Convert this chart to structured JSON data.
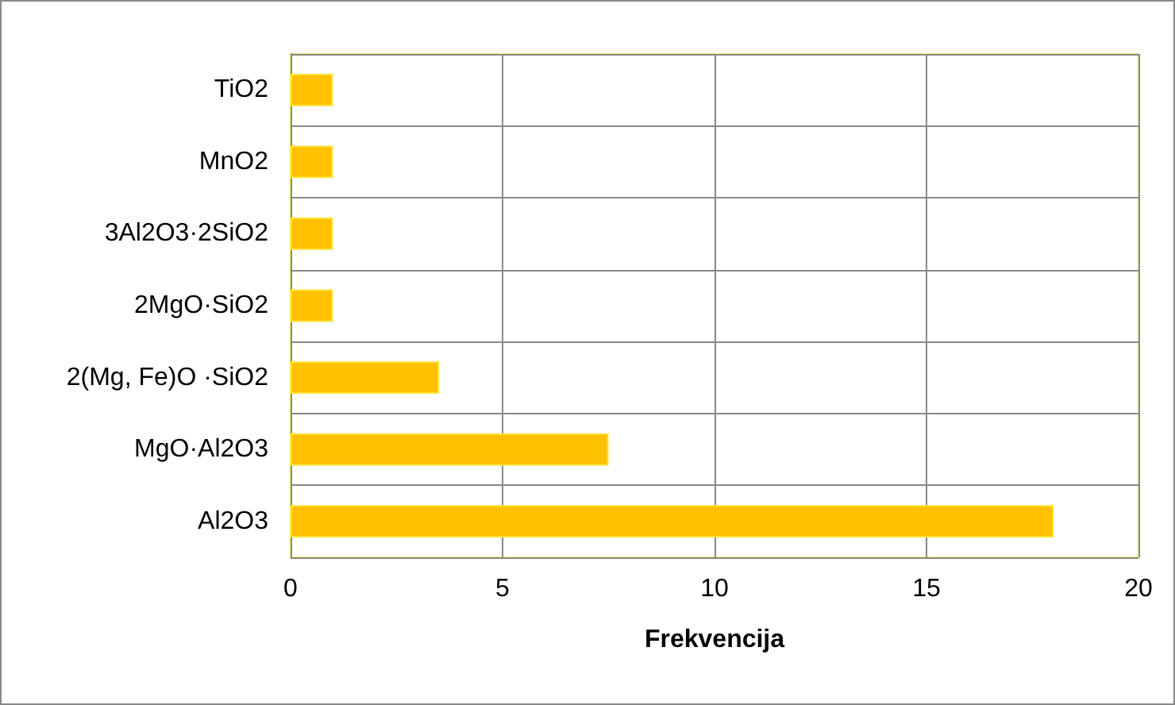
{
  "chart_data": {
    "type": "bar",
    "orientation": "horizontal",
    "xlabel": "Frekvencija",
    "categories": [
      "TiO2",
      "MnO2",
      "3Al2O3·2SiO2",
      "2MgO·SiO2",
      "2(Mg, Fe)O ·SiO2",
      "MgO·Al2O3",
      "Al2O3"
    ],
    "values": [
      1,
      1,
      1,
      1,
      3.5,
      7.5,
      18
    ],
    "color": "#ffc000",
    "xlim": [
      0,
      20
    ],
    "xticks": [
      0,
      5,
      10,
      15,
      20
    ],
    "grid": true
  }
}
